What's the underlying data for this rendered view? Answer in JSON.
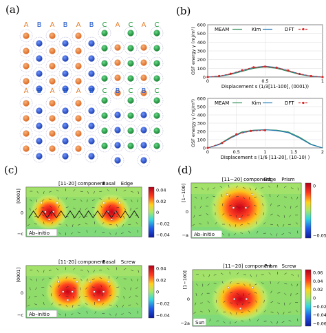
{
  "panel_labels": {
    "a": "(a)",
    "b": "(b)",
    "c": "(c)",
    "d": "(d)"
  },
  "panel_a": {
    "top_sequence": [
      "A",
      "B",
      "A",
      "B",
      "A",
      "B",
      "C",
      "A",
      "C",
      "A",
      "C"
    ],
    "bottom_sequence": [
      "A",
      "B",
      "A",
      "B",
      "A",
      "B",
      "C",
      "B",
      "C",
      "B",
      "C"
    ],
    "colors": {
      "A": "#e87c2a",
      "B": "#1f55c8",
      "C": "#1f9a3c"
    }
  },
  "chart_data": [
    {
      "type": "line",
      "title": "",
      "xlabel": "Displacement s (1/3[11-100], (0001))",
      "ylabel": "GSF energy γ (mJ/m²)",
      "xlim": [
        0,
        1
      ],
      "ylim": [
        0,
        600
      ],
      "xticks": [
        "0",
        "0.5",
        "1"
      ],
      "yticks": [
        "0",
        "100",
        "200",
        "300",
        "400",
        "500",
        "600"
      ],
      "grid": true,
      "legend": "top",
      "series": [
        {
          "name": "MEAM",
          "color": "#2e8b57",
          "x": [
            0,
            0.1,
            0.2,
            0.3,
            0.4,
            0.5,
            0.6,
            0.7,
            0.8,
            0.9,
            1.0
          ],
          "y": [
            0,
            8,
            30,
            65,
            100,
            115,
            100,
            65,
            30,
            8,
            0
          ]
        },
        {
          "name": "Kim",
          "color": "#1f77b4",
          "x": [
            0,
            0.1,
            0.2,
            0.3,
            0.4,
            0.5,
            0.6,
            0.7,
            0.8,
            0.9,
            1.0
          ],
          "y": [
            0,
            10,
            35,
            75,
            110,
            125,
            110,
            75,
            35,
            10,
            0
          ]
        },
        {
          "name": "DFT",
          "color": "#d62728",
          "x": [
            0,
            0.1,
            0.2,
            0.3,
            0.4,
            0.5,
            0.6,
            0.7,
            0.8,
            0.9,
            1.0
          ],
          "y": [
            0,
            12,
            38,
            78,
            112,
            120,
            108,
            75,
            36,
            12,
            0
          ]
        }
      ]
    },
    {
      "type": "line",
      "title": "",
      "xlabel": "Displacement s (1/6 [11-20], (10-10) )",
      "ylabel": "GSF energy γ (mJ/m²)",
      "xlim": [
        0,
        2
      ],
      "ylim": [
        0,
        600
      ],
      "xticks": [
        "0",
        "0.5",
        "1",
        "1.5",
        "2"
      ],
      "yticks": [
        "0",
        "100",
        "200",
        "300",
        "400",
        "500",
        "600"
      ],
      "grid": true,
      "legend": "top",
      "series": [
        {
          "name": "MEAM",
          "color": "#2e8b57",
          "x": [
            0,
            0.2,
            0.4,
            0.6,
            0.8,
            1.0,
            1.2,
            1.4,
            1.6,
            1.8,
            2.0
          ],
          "y": [
            0,
            45,
            130,
            195,
            215,
            220,
            215,
            195,
            130,
            45,
            0
          ]
        },
        {
          "name": "Kim",
          "color": "#1f77b4",
          "x": [
            0,
            0.2,
            0.4,
            0.6,
            0.8,
            1.0,
            1.2,
            1.4,
            1.6,
            1.8,
            2.0
          ],
          "y": [
            0,
            40,
            120,
            185,
            210,
            220,
            210,
            185,
            120,
            40,
            0
          ]
        },
        {
          "name": "DFT",
          "color": "#d62728",
          "x": [
            0,
            0.25,
            0.5,
            0.75,
            1.0
          ],
          "y": [
            0,
            60,
            165,
            205,
            215
          ]
        }
      ]
    },
    {
      "type": "heatmap",
      "title": "[11-20] component",
      "tags": [
        "Basal",
        "Edge"
      ],
      "yticks": [
        "[0001]",
        "0",
        "−c"
      ],
      "colorbar": [
        "0.04",
        "0.02",
        "0",
        "−0.02",
        "−0.04"
      ],
      "note": "Ab–initio"
    },
    {
      "type": "heatmap",
      "title": "[11-20] component",
      "tags": [
        "Basal",
        "Screw"
      ],
      "yticks": [
        "[0001]",
        "0",
        "−c"
      ],
      "colorbar": [
        "0.04",
        "0.02",
        "0",
        "−0.02",
        "−0.04"
      ],
      "note": "Ab–initio"
    },
    {
      "type": "heatmap",
      "title": "[11−20] component",
      "tags": [
        "Edge",
        "Prism"
      ],
      "yticks": [
        "[1−100]",
        "0",
        "−a"
      ],
      "colorbar": [
        "0",
        "−0.05"
      ],
      "note": "Ab–initio"
    },
    {
      "type": "heatmap",
      "title": "[11−20] component",
      "tags": [
        "Prism",
        "Screw"
      ],
      "yticks": [
        "[1−100]",
        "0",
        "−2a"
      ],
      "colorbar": [
        "0.06",
        "0.04",
        "0.02",
        "0",
        "−0.02",
        "−0.04",
        "−0.06"
      ],
      "note": "Sun"
    }
  ]
}
